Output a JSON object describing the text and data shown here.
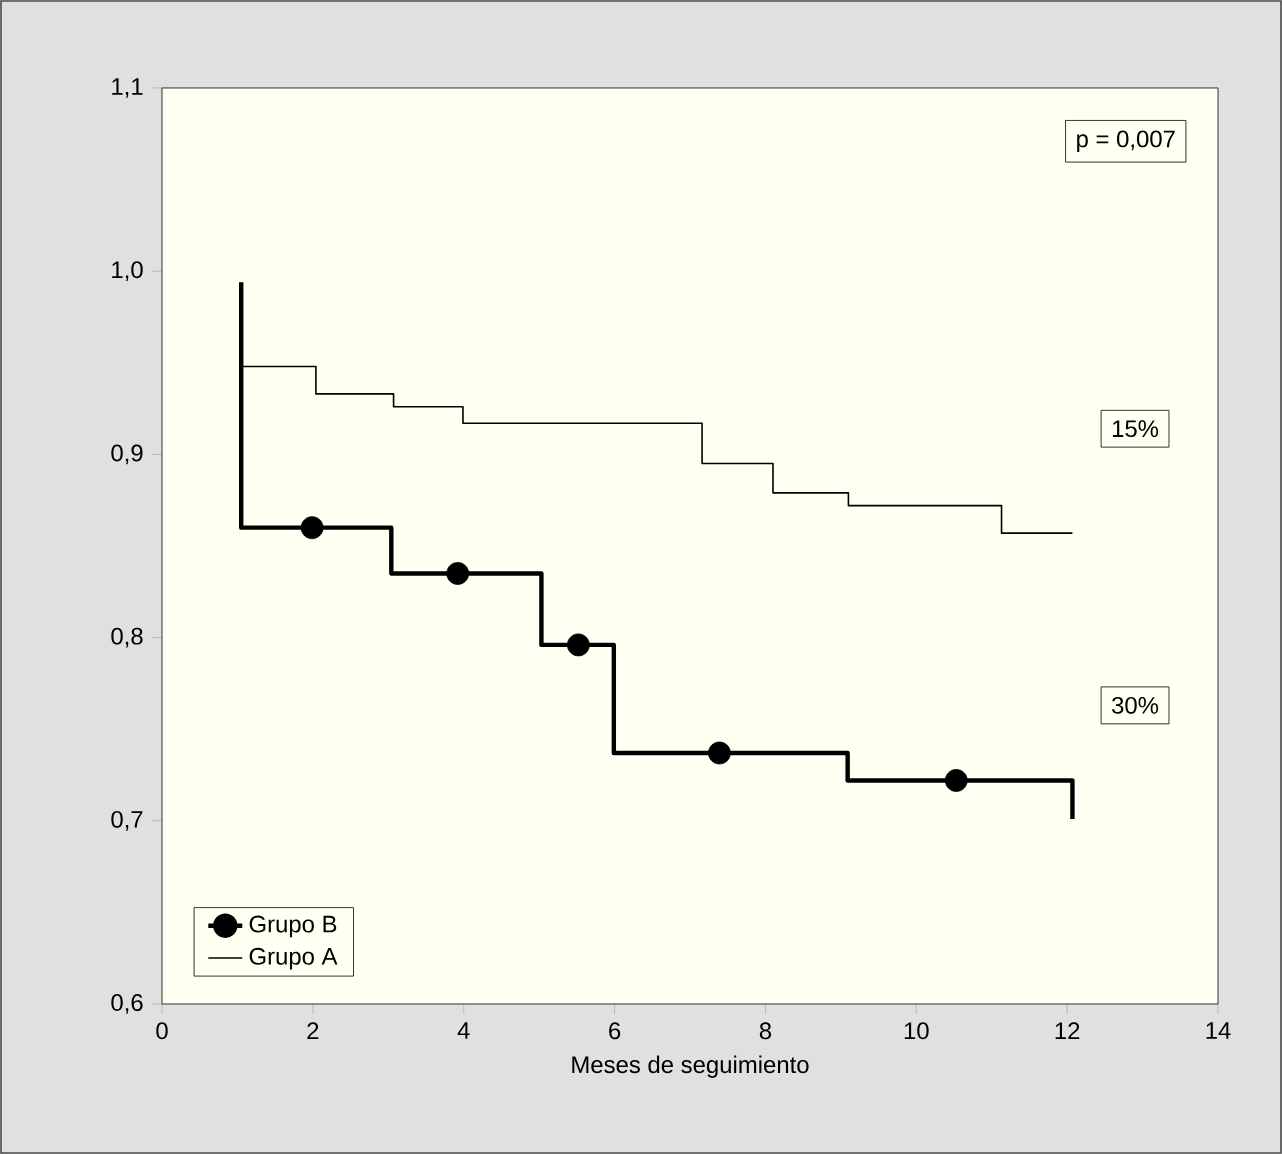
{
  "chart_data": {
    "type": "step",
    "xlabel": "Meses de seguimiento",
    "xlim": [
      0,
      14
    ],
    "xticks": [
      0,
      2,
      4,
      6,
      8,
      10,
      12,
      14
    ],
    "ylim": [
      0.6,
      1.1
    ],
    "yticks": [
      {
        "value": 0.6,
        "label": "0,6"
      },
      {
        "value": 0.7,
        "label": "0,7"
      },
      {
        "value": 0.8,
        "label": "0,8"
      },
      {
        "value": 0.9,
        "label": "0,9"
      },
      {
        "value": 1.0,
        "label": "1,0"
      },
      {
        "value": 1.1,
        "label": "1,1"
      }
    ],
    "legend": "bottom left",
    "grid": false,
    "series": [
      {
        "name": "Grupo B",
        "color": "#000000",
        "x": [
          1.05,
          1.05,
          3.04,
          5.03,
          5.99,
          9.09,
          12.07,
          12.07
        ],
        "values": [
          0.994,
          0.86,
          0.835,
          0.796,
          0.737,
          0.722,
          0.722,
          0.701
        ]
      },
      {
        "name": "Grupo A",
        "color": "#000000",
        "x": [
          1.05,
          2.04,
          3.07,
          3.99,
          7.16,
          8.1,
          9.1,
          11.13,
          12.07
        ],
        "values": [
          0.948,
          0.933,
          0.926,
          0.917,
          0.895,
          0.879,
          0.872,
          0.857,
          0.857
        ]
      },
      {
        "type": "scatter",
        "marker": "circle",
        "color": "#000000",
        "x": [
          1.99,
          3.92,
          5.52,
          7.39,
          10.53
        ],
        "values": [
          0.86,
          0.835,
          0.796,
          0.737,
          0.722
        ]
      }
    ],
    "annotations": [
      "p = 0,007",
      {
        "text": "15%",
        "x": 12.9,
        "y": 0.914
      },
      {
        "text": "30%",
        "x": 12.9,
        "y": 0.763
      }
    ]
  }
}
